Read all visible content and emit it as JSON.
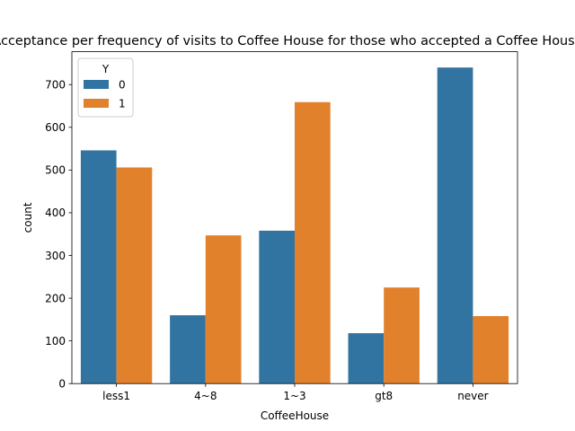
{
  "chart_data": {
    "type": "bar",
    "title": "Acceptance per frequency of visits to Coffee House for those who accepted a Coffee House",
    "xlabel": "CoffeeHouse",
    "ylabel": "count",
    "categories": [
      "less1",
      "4~8",
      "1~3",
      "gt8",
      "never"
    ],
    "series": [
      {
        "name": "0",
        "values": [
          546,
          160,
          358,
          118,
          740
        ],
        "color": "#3274a1"
      },
      {
        "name": "1",
        "values": [
          506,
          347,
          659,
          225,
          158
        ],
        "color": "#e1812c"
      }
    ],
    "ylim": [
      0,
      777
    ],
    "yticks": [
      0,
      100,
      200,
      300,
      400,
      500,
      600,
      700
    ],
    "grid": false,
    "legend": {
      "title": "Y",
      "placement": "top-left"
    }
  }
}
